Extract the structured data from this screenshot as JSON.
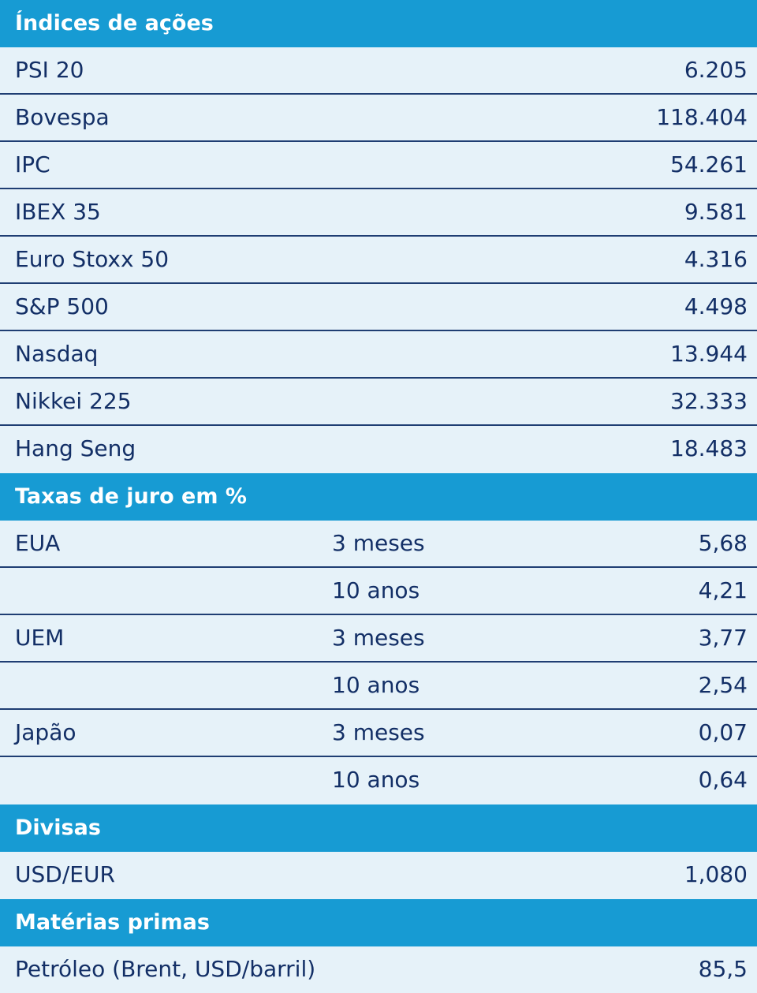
{
  "colors": {
    "header_bg": "#179bd3",
    "header_text": "#ffffff",
    "row_bg": "#e6f2f9",
    "row_text": "#132f66",
    "divider": "#1f3e73"
  },
  "sections": {
    "indices": {
      "title": "Índices de ações",
      "rows": [
        {
          "label": "PSI 20",
          "value": "6.205"
        },
        {
          "label": "Bovespa",
          "value": "118.404"
        },
        {
          "label": "IPC",
          "value": "54.261"
        },
        {
          "label": "IBEX 35",
          "value": "9.581"
        },
        {
          "label": "Euro Stoxx 50",
          "value": "4.316"
        },
        {
          "label": "S&P 500",
          "value": "4.498"
        },
        {
          "label": "Nasdaq",
          "value": "13.944"
        },
        {
          "label": "Nikkei 225",
          "value": "32.333"
        },
        {
          "label": "Hang Seng",
          "value": "18.483"
        }
      ]
    },
    "rates": {
      "title": "Taxas de juro em %",
      "rows": [
        {
          "label": "EUA",
          "term": "3 meses",
          "value": "5,68"
        },
        {
          "label": "",
          "term": "10 anos",
          "value": "4,21"
        },
        {
          "label": "UEM",
          "term": "3 meses",
          "value": "3,77"
        },
        {
          "label": "",
          "term": "10 anos",
          "value": "2,54"
        },
        {
          "label": "Japão",
          "term": "3 meses",
          "value": "0,07"
        },
        {
          "label": "",
          "term": "10 anos",
          "value": "0,64"
        }
      ]
    },
    "currencies": {
      "title": "Divisas",
      "rows": [
        {
          "label": "USD/EUR",
          "value": "1,080"
        }
      ]
    },
    "commodities": {
      "title": "Matérias primas",
      "rows": [
        {
          "label": "Petróleo (Brent, USD/barril)",
          "value": "85,5"
        }
      ]
    }
  }
}
